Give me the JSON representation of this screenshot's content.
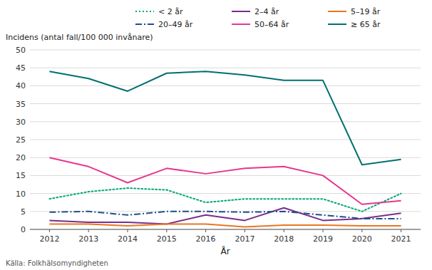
{
  "chart_data": {
    "type": "line",
    "xlabel": "År",
    "ylabel": "Incidens (antal fall/100 000 invånare)",
    "annotations": [
      "Källa:  Folkhälsomyndigheten"
    ],
    "x": [
      2012,
      2013,
      2014,
      2015,
      2016,
      2017,
      2018,
      2019,
      2020,
      2021
    ],
    "xlim": [
      2011.5,
      2021.5
    ],
    "xticks": [
      2012,
      2013,
      2014,
      2015,
      2016,
      2017,
      2018,
      2019,
      2020,
      2021
    ],
    "ylim": [
      0,
      50
    ],
    "yticks": [
      0,
      5,
      10,
      15,
      20,
      25,
      30,
      35,
      40,
      45,
      50
    ],
    "grid": true,
    "legend": "top",
    "series": [
      {
        "name": "< 2 år",
        "color": "#00A878",
        "line_style": "dotted",
        "values": [
          8.5,
          10.5,
          11.5,
          11.0,
          7.5,
          8.5,
          8.5,
          8.5,
          5.0,
          10.0
        ]
      },
      {
        "name": "2–4 år",
        "color": "#7B2D8B",
        "line_style": "solid",
        "values": [
          2.5,
          2.0,
          2.0,
          1.5,
          4.0,
          2.5,
          6.0,
          2.5,
          3.0,
          4.5
        ]
      },
      {
        "name": "5–19 år",
        "color": "#E87722",
        "line_style": "solid",
        "values": [
          1.5,
          1.5,
          1.0,
          1.5,
          1.5,
          0.7,
          1.2,
          1.2,
          1.0,
          1.0
        ]
      },
      {
        "name": "20–49 år",
        "color": "#1F4E8C",
        "line_style": "dashdot",
        "values": [
          4.8,
          5.0,
          4.0,
          5.0,
          5.0,
          4.8,
          5.0,
          4.0,
          3.0,
          3.0
        ]
      },
      {
        "name": "50–64 år",
        "color": "#E8368F",
        "line_style": "solid",
        "values": [
          20.0,
          17.5,
          13.0,
          17.0,
          15.5,
          17.0,
          17.5,
          15.0,
          7.0,
          8.0
        ]
      },
      {
        "name": "≥ 65 år",
        "color": "#007070",
        "line_style": "solid",
        "values": [
          44.0,
          42.0,
          38.5,
          43.5,
          44.0,
          43.0,
          41.5,
          41.5,
          18.0,
          19.5
        ]
      }
    ]
  }
}
